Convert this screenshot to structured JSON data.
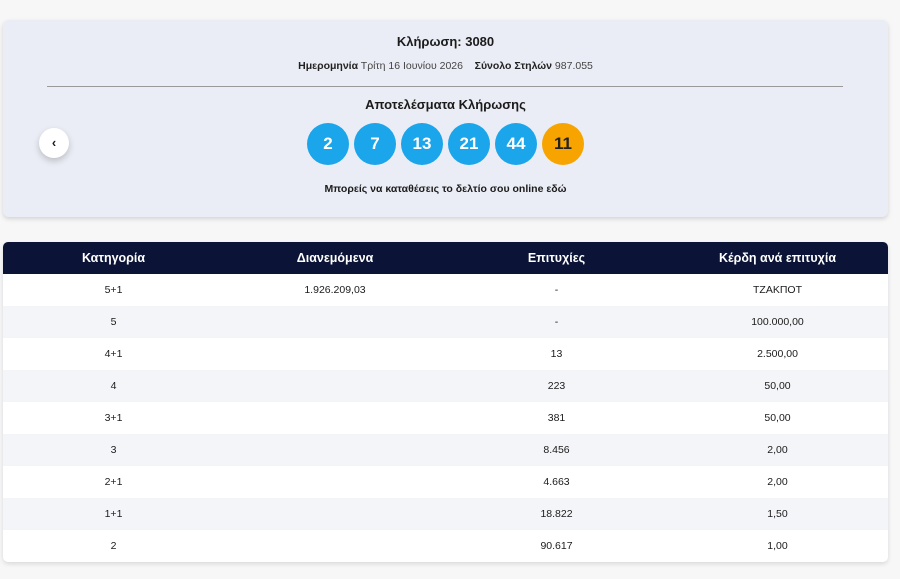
{
  "header": {
    "title": "Κλήρωση: 3080",
    "date_label": "Ημερομηνία",
    "date_value": "Τρίτη 16 Ιουνίου 2026",
    "total_label": "Σύνολο Στηλών",
    "total_value": "987.055"
  },
  "results": {
    "title": "Αποτελέσματα Κλήρωσης",
    "numbers": [
      "2",
      "7",
      "13",
      "21",
      "44"
    ],
    "joker": "11",
    "link": "Μπορείς να καταθέσεις το δελτίο σου online εδώ"
  },
  "table": {
    "headers": [
      "Κατηγορία",
      "Διανεμόμενα",
      "Επιτυχίες",
      "Κέρδη ανά επιτυχία"
    ],
    "rows": [
      {
        "category": "5+1",
        "distributed": "1.926.209,03",
        "winners": "-",
        "prize": "ΤΖΑΚΠΟΤ"
      },
      {
        "category": "5",
        "winners": "-",
        "prize": "100.000,00"
      },
      {
        "category": "4+1",
        "winners": "13",
        "prize": "2.500,00"
      },
      {
        "category": "4",
        "winners": "223",
        "prize": "50,00"
      },
      {
        "category": "3+1",
        "winners": "381",
        "prize": "50,00"
      },
      {
        "category": "3",
        "winners": "8.456",
        "prize": "2,00"
      },
      {
        "category": "2+1",
        "winners": "4.663",
        "prize": "2,00"
      },
      {
        "category": "1+1",
        "winners": "18.822",
        "prize": "1,50"
      },
      {
        "category": "2",
        "winners": "90.617",
        "prize": "1,00"
      }
    ]
  }
}
